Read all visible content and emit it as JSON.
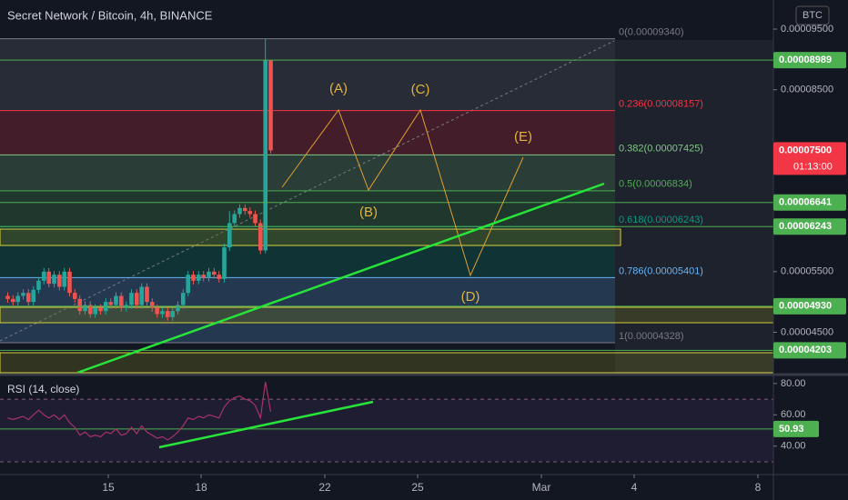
{
  "chart_data": [
    {
      "type": "candlestick",
      "title": "Secret Network / Bitcoin, 4h, BINANCE",
      "currency": "BTC",
      "up_color": "#26a69a",
      "down_color": "#ef5350",
      "x": [
        11.75,
        11.92,
        12.08,
        12.25,
        12.42,
        12.58,
        12.75,
        12.92,
        13.08,
        13.25,
        13.42,
        13.58,
        13.75,
        13.92,
        14.08,
        14.25,
        14.42,
        14.58,
        14.75,
        14.92,
        15.08,
        15.25,
        15.42,
        15.58,
        15.75,
        15.92,
        16.08,
        16.25,
        16.42,
        16.58,
        16.75,
        16.92,
        17.08,
        17.25,
        17.42,
        17.58,
        17.75,
        17.92,
        18.08,
        18.25,
        18.42,
        18.58,
        18.75,
        18.92,
        19.08,
        19.25,
        19.42,
        19.58,
        19.75,
        19.92,
        20.08,
        20.25
      ],
      "open": [
        5.1e-05,
        5.05e-05,
        5e-05,
        5.1e-05,
        5.15e-05,
        5e-05,
        5.2e-05,
        5.35e-05,
        5.5e-05,
        5.3e-05,
        5.45e-05,
        5.25e-05,
        5.5e-05,
        5.15e-05,
        5.05e-05,
        4.85e-05,
        4.95e-05,
        4.8e-05,
        4.9e-05,
        4.85e-05,
        5e-05,
        4.95e-05,
        5.1e-05,
        4.9e-05,
        4.95e-05,
        5.15e-05,
        4.95e-05,
        5.25e-05,
        5e-05,
        4.9e-05,
        4.8e-05,
        4.85e-05,
        4.75e-05,
        4.85e-05,
        4.95e-05,
        5.15e-05,
        5.45e-05,
        5.35e-05,
        5.45e-05,
        5.4e-05,
        5.5e-05,
        5.45e-05,
        5.38e-05,
        5.9e-05,
        6.3e-05,
        6.45e-05,
        6.55e-05,
        6.5e-05,
        6.45e-05,
        6.3e-05,
        5.85e-05,
        8.989e-05
      ],
      "high": [
        5.16e-05,
        5.11e-05,
        5.16e-05,
        5.21e-05,
        5.21e-05,
        5.26e-05,
        5.41e-05,
        5.56e-05,
        5.56e-05,
        5.51e-05,
        5.51e-05,
        5.56e-05,
        5.56e-05,
        5.21e-05,
        5.11e-05,
        5.01e-05,
        5.01e-05,
        4.96e-05,
        4.96e-05,
        5.06e-05,
        5.06e-05,
        5.16e-05,
        5.16e-05,
        5.01e-05,
        5.21e-05,
        5.21e-05,
        5.31e-05,
        5.31e-05,
        5.06e-05,
        4.96e-05,
        4.91e-05,
        4.91e-05,
        4.91e-05,
        5.01e-05,
        5.21e-05,
        5.51e-05,
        5.51e-05,
        5.51e-05,
        5.51e-05,
        5.56e-05,
        5.56e-05,
        5.51e-05,
        5.96e-05,
        6.5e-05,
        6.51e-05,
        6.61e-05,
        6.61e-05,
        6.56e-05,
        6.51e-05,
        6.36e-05,
        9.34e-05,
        8.989e-05
      ],
      "low": [
        4.99e-05,
        4.94e-05,
        4.94e-05,
        5.04e-05,
        4.94e-05,
        4.94e-05,
        5.14e-05,
        5.29e-05,
        5.24e-05,
        5.24e-05,
        5.19e-05,
        5.19e-05,
        5.09e-05,
        4.99e-05,
        4.79e-05,
        4.79e-05,
        4.74e-05,
        4.74e-05,
        4.79e-05,
        4.79e-05,
        4.89e-05,
        4.89e-05,
        4.84e-05,
        4.84e-05,
        4.89e-05,
        4.89e-05,
        4.89e-05,
        4.94e-05,
        4.84e-05,
        4.74e-05,
        4.74e-05,
        4.69e-05,
        4.69e-05,
        4.79e-05,
        4.89e-05,
        5.09e-05,
        5.29e-05,
        5.29e-05,
        5.34e-05,
        5.34e-05,
        5.39e-05,
        5.32e-05,
        5.32e-05,
        5.84e-05,
        6.24e-05,
        6.39e-05,
        6.44e-05,
        6.39e-05,
        6.24e-05,
        5.79e-05,
        5.8e-05,
        7.45e-05
      ],
      "close": [
        5.05e-05,
        5e-05,
        5.1e-05,
        5.15e-05,
        5e-05,
        5.2e-05,
        5.35e-05,
        5.5e-05,
        5.3e-05,
        5.45e-05,
        5.25e-05,
        5.5e-05,
        5.15e-05,
        5.05e-05,
        4.85e-05,
        4.95e-05,
        4.8e-05,
        4.9e-05,
        4.85e-05,
        5e-05,
        4.95e-05,
        5.1e-05,
        4.9e-05,
        4.95e-05,
        5.15e-05,
        4.95e-05,
        5.25e-05,
        5e-05,
        4.9e-05,
        4.8e-05,
        4.85e-05,
        4.75e-05,
        4.85e-05,
        4.95e-05,
        5.15e-05,
        5.45e-05,
        5.35e-05,
        5.45e-05,
        5.4e-05,
        5.5e-05,
        5.45e-05,
        5.38e-05,
        5.9e-05,
        6.3e-05,
        6.45e-05,
        6.55e-05,
        6.5e-05,
        6.45e-05,
        6.3e-05,
        5.85e-05,
        8.989e-05,
        7.5e-05
      ],
      "xlim": [
        11.5,
        36.5
      ],
      "xticks": [
        15,
        18,
        22,
        25,
        {
          "value": 29,
          "label": "Mar"
        },
        {
          "value": 32,
          "label": "4"
        },
        {
          "value": 36,
          "label": "8"
        }
      ],
      "ylim": [
        3.833e-05,
        9.98e-05
      ],
      "yticks": [
        {
          "value": 9.5e-05,
          "label": "0.00009500"
        },
        {
          "value": 8.5e-05,
          "label": "0.00008500"
        },
        {
          "value": 5.5e-05,
          "label": "0.00005500"
        },
        {
          "value": 4.5e-05,
          "label": "0.00004500"
        }
      ],
      "fib_levels": [
        {
          "label": "0(0.00009340)",
          "value": 9.34e-05,
          "color": "#787b86"
        },
        {
          "label": "0.236(0.00008157)",
          "value": 8.157e-05,
          "color": "#f23645"
        },
        {
          "label": "0.382(0.00007425)",
          "value": 7.425e-05,
          "color": "#81c784"
        },
        {
          "label": "0.5(0.00006834)",
          "value": 6.834e-05,
          "color": "#4caf50"
        },
        {
          "label": "0.618(0.00006243)",
          "value": 6.243e-05,
          "color": "#089981"
        },
        {
          "label": "0.786(0.00005401)",
          "value": 5.401e-05,
          "color": "#64b5f6"
        },
        {
          "label": "1(0.00004328)",
          "value": 4.328e-05,
          "color": "#787b86"
        }
      ],
      "price_lines": [
        {
          "label": "0.00008989",
          "value": 8.989e-05
        },
        {
          "label": "0.00006641",
          "value": 6.641e-05
        },
        {
          "label": "0.00006243",
          "value": 6.243e-05
        },
        {
          "label": "0.00004930",
          "value": 4.93e-05
        },
        {
          "label": "0.00004203",
          "value": 4.203e-05
        }
      ],
      "price_line_color": "#4caf50",
      "last_price": {
        "label": "0.00007500",
        "value": 7.5e-05,
        "countdown": "01:13:00",
        "color": "#f23645"
      },
      "waves": [
        "(A)",
        "(B)",
        "(C)",
        "(D)",
        "(E)"
      ]
    },
    {
      "type": "line",
      "title": "RSI (14, close)",
      "color": "#a8326a",
      "x": [
        11.75,
        11.92,
        12.08,
        12.25,
        12.42,
        12.58,
        12.75,
        12.92,
        13.08,
        13.25,
        13.42,
        13.58,
        13.75,
        13.92,
        14.08,
        14.25,
        14.42,
        14.58,
        14.75,
        14.92,
        15.08,
        15.25,
        15.42,
        15.58,
        15.75,
        15.92,
        16.08,
        16.25,
        16.42,
        16.58,
        16.75,
        16.92,
        17.08,
        17.25,
        17.42,
        17.58,
        17.75,
        17.92,
        18.08,
        18.25,
        18.42,
        18.58,
        18.75,
        18.92,
        19.08,
        19.25,
        19.42,
        19.58,
        19.75,
        19.92,
        20.08,
        20.25
      ],
      "values": [
        58,
        57,
        58,
        59,
        57,
        60,
        63,
        60,
        58,
        60,
        57,
        60,
        55,
        52,
        47,
        49,
        46,
        47,
        46,
        49,
        48,
        51,
        47,
        48,
        52,
        48,
        53,
        49,
        47,
        45,
        46,
        44,
        46,
        49,
        53,
        58,
        57,
        59,
        58,
        60,
        59,
        58,
        65,
        69,
        71,
        72,
        70,
        69,
        66,
        58,
        81,
        62
      ],
      "ylim": [
        23,
        84
      ],
      "yticks": [
        {
          "value": 80,
          "label": "80.00"
        },
        {
          "value": 60,
          "label": "60.00"
        },
        {
          "value": 40,
          "label": "40.00"
        }
      ],
      "bands": [
        30,
        70
      ],
      "level_lines": [
        {
          "label": "50.93",
          "value": 50.93,
          "color": "#4caf50"
        }
      ]
    }
  ]
}
